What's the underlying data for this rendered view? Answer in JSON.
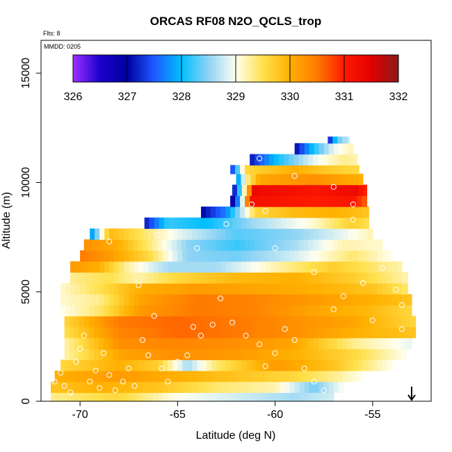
{
  "chart_data": {
    "type": "heatmap",
    "title": "ORCAS RF08 N2O_QCLS_trop",
    "flights_note": "Flts: 8",
    "date_note": "MMDD: 0205",
    "xlabel": "Latitude (deg N)",
    "ylabel": "Altitude (m)",
    "xlim": [
      -72,
      -52
    ],
    "ylim": [
      0,
      16500
    ],
    "x_ticks": [
      -70,
      -65,
      -60,
      -55
    ],
    "y_ticks": [
      0,
      5000,
      10000,
      15000
    ],
    "colorbar": {
      "min": 326,
      "max": 332,
      "ticks": [
        326,
        327,
        328,
        329,
        330,
        331,
        332
      ],
      "stops": [
        {
          "v": 326.0,
          "color": "#9b30ff"
        },
        {
          "v": 326.5,
          "color": "#1a00cc"
        },
        {
          "v": 327.0,
          "color": "#0000a0"
        },
        {
          "v": 327.5,
          "color": "#1e5aff"
        },
        {
          "v": 328.0,
          "color": "#00bfff"
        },
        {
          "v": 328.5,
          "color": "#8fd3f5"
        },
        {
          "v": 329.0,
          "color": "#fffff0"
        },
        {
          "v": 329.5,
          "color": "#ffe14d"
        },
        {
          "v": 330.0,
          "color": "#ffb000"
        },
        {
          "v": 330.5,
          "color": "#ff7a00"
        },
        {
          "v": 331.0,
          "color": "#ff1a00"
        },
        {
          "v": 331.5,
          "color": "#e00000"
        },
        {
          "v": 332.0,
          "color": "#8b1a1a"
        }
      ]
    },
    "arrow_marker": {
      "latitude": -53,
      "direction": "down"
    },
    "bands": [
      {
        "alt": [
          0,
          400
        ],
        "lat": [
          -71.5,
          -57.0
        ],
        "samples": [
          [
            -71.5,
            329.3
          ],
          [
            -68,
            329.6
          ],
          [
            -65,
            329.0
          ],
          [
            -62,
            328.8
          ],
          [
            -59,
            328.6
          ],
          [
            -57,
            328.8
          ]
        ]
      },
      {
        "alt": [
          400,
          900
        ],
        "lat": [
          -71.5,
          -56.5
        ],
        "samples": [
          [
            -71.5,
            329.8
          ],
          [
            -69,
            330.0
          ],
          [
            -66,
            329.8
          ],
          [
            -63,
            329.4
          ],
          [
            -60,
            329.2
          ],
          [
            -58,
            328.4
          ],
          [
            -56.5,
            329.0
          ]
        ]
      },
      {
        "alt": [
          900,
          1400
        ],
        "lat": [
          -71.3,
          -55.5
        ],
        "samples": [
          [
            -71.3,
            330.0
          ],
          [
            -68,
            330.2
          ],
          [
            -65,
            330.0
          ],
          [
            -62,
            329.8
          ],
          [
            -59,
            329.6
          ],
          [
            -57,
            329.3
          ],
          [
            -55.5,
            329.0
          ]
        ]
      },
      {
        "alt": [
          1400,
          1900
        ],
        "lat": [
          -71.0,
          -54.0
        ],
        "samples": [
          [
            -71,
            329.6
          ],
          [
            -68,
            330.0
          ],
          [
            -66,
            329.7
          ],
          [
            -64.5,
            328.6
          ],
          [
            -63,
            329.4
          ],
          [
            -60,
            330.2
          ],
          [
            -57,
            329.8
          ],
          [
            -54,
            329.0
          ]
        ]
      },
      {
        "alt": [
          1900,
          2400
        ],
        "lat": [
          -70.8,
          -53.3
        ],
        "samples": [
          [
            -70.8,
            329.2
          ],
          [
            -68,
            330.1
          ],
          [
            -65,
            330.3
          ],
          [
            -62,
            330.2
          ],
          [
            -59,
            330.0
          ],
          [
            -56,
            329.6
          ],
          [
            -53.3,
            329.0
          ]
        ]
      },
      {
        "alt": [
          2400,
          2900
        ],
        "lat": [
          -70.8,
          -53.0
        ],
        "samples": [
          [
            -70.8,
            329.2
          ],
          [
            -68,
            330.3
          ],
          [
            -65,
            330.4
          ],
          [
            -62,
            330.3
          ],
          [
            -59,
            330.1
          ],
          [
            -56,
            329.3
          ],
          [
            -53,
            328.9
          ]
        ]
      },
      {
        "alt": [
          2900,
          3400
        ],
        "lat": [
          -70.8,
          -52.8
        ],
        "samples": [
          [
            -70.8,
            329.5
          ],
          [
            -68,
            330.4
          ],
          [
            -65,
            330.6
          ],
          [
            -62,
            330.5
          ],
          [
            -59,
            330.3
          ],
          [
            -56,
            330.0
          ],
          [
            -52.8,
            329.8
          ]
        ]
      },
      {
        "alt": [
          3400,
          3900
        ],
        "lat": [
          -70.8,
          -52.8
        ],
        "samples": [
          [
            -70.8,
            329.6
          ],
          [
            -68,
            330.5
          ],
          [
            -65,
            330.6
          ],
          [
            -62,
            330.5
          ],
          [
            -59,
            330.3
          ],
          [
            -56,
            330.1
          ],
          [
            -52.8,
            329.6
          ]
        ]
      },
      {
        "alt": [
          3900,
          4400
        ],
        "lat": [
          -71.0,
          -53.0
        ],
        "samples": [
          [
            -71,
            329.0
          ],
          [
            -69,
            329.4
          ],
          [
            -67,
            330.2
          ],
          [
            -64,
            330.5
          ],
          [
            -61,
            330.4
          ],
          [
            -58,
            330.1
          ],
          [
            -55,
            329.9
          ],
          [
            -53,
            329.6
          ]
        ]
      },
      {
        "alt": [
          4400,
          4900
        ],
        "lat": [
          -71.0,
          -53.0
        ],
        "samples": [
          [
            -71,
            329.1
          ],
          [
            -69,
            329.3
          ],
          [
            -67,
            330.1
          ],
          [
            -64,
            330.5
          ],
          [
            -61,
            330.4
          ],
          [
            -58,
            330.2
          ],
          [
            -55,
            330.0
          ],
          [
            -53,
            329.8
          ]
        ]
      },
      {
        "alt": [
          4900,
          5400
        ],
        "lat": [
          -71.0,
          -53.2
        ],
        "samples": [
          [
            -71,
            329.1
          ],
          [
            -69,
            329.5
          ],
          [
            -67,
            330.0
          ],
          [
            -64,
            330.2
          ],
          [
            -61,
            330.1
          ],
          [
            -58,
            330.0
          ],
          [
            -55,
            329.8
          ],
          [
            -53.2,
            329.4
          ]
        ]
      },
      {
        "alt": [
          5400,
          5900
        ],
        "lat": [
          -70.5,
          -53.2
        ],
        "samples": [
          [
            -70.5,
            329.3
          ],
          [
            -68.5,
            329.5
          ],
          [
            -67,
            329.2
          ],
          [
            -65,
            329.6
          ],
          [
            -62,
            329.9
          ],
          [
            -59,
            330.0
          ],
          [
            -56,
            329.7
          ],
          [
            -53.2,
            329.2
          ]
        ]
      },
      {
        "alt": [
          5900,
          6400
        ],
        "lat": [
          -70.5,
          -53.5
        ],
        "samples": [
          [
            -70.5,
            330.2
          ],
          [
            -69,
            330.0
          ],
          [
            -67.5,
            329.2
          ],
          [
            -65.5,
            328.6
          ],
          [
            -63,
            328.6
          ],
          [
            -60,
            329.2
          ],
          [
            -57,
            329.7
          ],
          [
            -53.5,
            329.2
          ]
        ]
      },
      {
        "alt": [
          6400,
          6900
        ],
        "lat": [
          -70.0,
          -54.0
        ],
        "samples": [
          [
            -70,
            330.5
          ],
          [
            -68.5,
            330.2
          ],
          [
            -66.5,
            329.6
          ],
          [
            -64.5,
            328.5
          ],
          [
            -62,
            328.4
          ],
          [
            -59,
            328.8
          ],
          [
            -56,
            329.4
          ],
          [
            -54,
            329.0
          ]
        ]
      },
      {
        "alt": [
          6900,
          7400
        ],
        "lat": [
          -69.8,
          -54.5
        ],
        "samples": [
          [
            -69.8,
            330.3
          ],
          [
            -68,
            330.0
          ],
          [
            -66.5,
            329.4
          ],
          [
            -64.5,
            328.5
          ],
          [
            -62,
            328.2
          ],
          [
            -59,
            328.6
          ],
          [
            -56.5,
            329.2
          ],
          [
            -54.5,
            329.1
          ]
        ]
      },
      {
        "alt": [
          7400,
          7900
        ],
        "lat": [
          -69.5,
          -55.0
        ],
        "samples": [
          [
            -69.5,
            327.6
          ],
          [
            -68.5,
            329.9
          ],
          [
            -67,
            329.5
          ],
          [
            -65,
            328.9
          ],
          [
            -62,
            328.3
          ],
          [
            -59,
            328.5
          ],
          [
            -56.5,
            328.9
          ],
          [
            -55,
            329.2
          ]
        ]
      },
      {
        "alt": [
          7900,
          8400
        ],
        "lat": [
          -66.7,
          -55.2
        ],
        "samples": [
          [
            -66.7,
            327.1
          ],
          [
            -65.5,
            328.2
          ],
          [
            -63.5,
            328.0
          ],
          [
            -61,
            328.6
          ],
          [
            -58,
            329.1
          ],
          [
            -56,
            329.7
          ],
          [
            -55.2,
            329.5
          ]
        ]
      },
      {
        "alt": [
          8400,
          8900
        ],
        "lat": [
          -63.8,
          -55.2
        ],
        "samples": [
          [
            -63.8,
            327.0
          ],
          [
            -62.5,
            327.7
          ],
          [
            -61,
            329.6
          ],
          [
            -59,
            329.9
          ],
          [
            -57,
            330.0
          ],
          [
            -55.2,
            329.8
          ]
        ]
      },
      {
        "alt": [
          8900,
          9400
        ],
        "lat": [
          -62.3,
          -55.3
        ],
        "samples": [
          [
            -62.3,
            326.4
          ],
          [
            -61.8,
            328.1
          ],
          [
            -61.3,
            331.2
          ],
          [
            -58,
            331.0
          ],
          [
            -56,
            331.1
          ],
          [
            -55.3,
            330.6
          ]
        ]
      },
      {
        "alt": [
          9400,
          9900
        ],
        "lat": [
          -62.2,
          -55.3
        ],
        "samples": [
          [
            -62.2,
            326.8
          ],
          [
            -61.7,
            328.6
          ],
          [
            -61.1,
            331.3
          ],
          [
            -58,
            331.1
          ],
          [
            -55.8,
            331.3
          ],
          [
            -55.3,
            330.9
          ]
        ]
      },
      {
        "alt": [
          9900,
          10400
        ],
        "lat": [
          -62.0,
          -55.5
        ],
        "samples": [
          [
            -62,
            327.5
          ],
          [
            -61.5,
            329.2
          ],
          [
            -60.8,
            330.1
          ],
          [
            -58,
            330.3
          ],
          [
            -55.5,
            330.0
          ]
        ]
      },
      {
        "alt": [
          10400,
          10800
        ],
        "lat": [
          -62.3,
          -55.7
        ],
        "samples": [
          [
            -62.3,
            327.1
          ],
          [
            -61.5,
            329.6
          ],
          [
            -59,
            330.0
          ],
          [
            -57,
            329.7
          ],
          [
            -55.7,
            329.6
          ]
        ]
      },
      {
        "alt": [
          10800,
          11300
        ],
        "lat": [
          -61.3,
          -55.8
        ],
        "samples": [
          [
            -61.3,
            327.1
          ],
          [
            -60,
            328.0
          ],
          [
            -58,
            328.9
          ],
          [
            -56.5,
            329.3
          ],
          [
            -55.8,
            329.2
          ]
        ]
      },
      {
        "alt": [
          11300,
          11800
        ],
        "lat": [
          -59.0,
          -56.0
        ],
        "samples": [
          [
            -59,
            327.0
          ],
          [
            -58,
            328.1
          ],
          [
            -57,
            328.9
          ],
          [
            -56,
            329.2
          ]
        ]
      },
      {
        "alt": [
          11800,
          12100
        ],
        "lat": [
          -57.3,
          -56.2
        ],
        "samples": [
          [
            -57.3,
            327.0
          ],
          [
            -56.8,
            328.3
          ],
          [
            -56.2,
            328.8
          ]
        ]
      }
    ],
    "sample_points": [
      [
        -71.3,
        900
      ],
      [
        -71.0,
        1300
      ],
      [
        -70.8,
        700
      ],
      [
        -70.5,
        400
      ],
      [
        -70.2,
        1800
      ],
      [
        -70.0,
        2400
      ],
      [
        -69.8,
        3000
      ],
      [
        -69.5,
        900
      ],
      [
        -69.2,
        1400
      ],
      [
        -69.0,
        600
      ],
      [
        -68.8,
        2200
      ],
      [
        -68.5,
        1200
      ],
      [
        -68.2,
        500
      ],
      [
        -67.8,
        900
      ],
      [
        -67.5,
        1500
      ],
      [
        -67.2,
        700
      ],
      [
        -66.8,
        2800
      ],
      [
        -66.5,
        2100
      ],
      [
        -66.2,
        3900
      ],
      [
        -65.8,
        1500
      ],
      [
        -65.5,
        900
      ],
      [
        -65.0,
        1800
      ],
      [
        -64.5,
        2100
      ],
      [
        -64.2,
        3400
      ],
      [
        -63.8,
        3000
      ],
      [
        -63.2,
        3500
      ],
      [
        -62.8,
        4700
      ],
      [
        -62.2,
        3600
      ],
      [
        -61.5,
        3000
      ],
      [
        -60.8,
        2600
      ],
      [
        -60.5,
        1600
      ],
      [
        -60.0,
        2200
      ],
      [
        -59.5,
        3300
      ],
      [
        -59.0,
        2800
      ],
      [
        -58.5,
        1500
      ],
      [
        -58.0,
        900
      ],
      [
        -57.5,
        500
      ],
      [
        -57.0,
        4200
      ],
      [
        -56.5,
        4800
      ],
      [
        -55.5,
        5400
      ],
      [
        -54.5,
        6100
      ],
      [
        -53.8,
        5100
      ],
      [
        -53.5,
        3300
      ],
      [
        -68.5,
        7300
      ],
      [
        -66.0,
        7600
      ],
      [
        -64.0,
        7000
      ],
      [
        -61.2,
        9000
      ],
      [
        -60.5,
        8700
      ],
      [
        -59.0,
        10300
      ],
      [
        -60.8,
        11100
      ],
      [
        -57.0,
        9800
      ],
      [
        -56.0,
        9000
      ],
      [
        -62.5,
        8100
      ],
      [
        -60.0,
        7000
      ],
      [
        -58.0,
        5900
      ],
      [
        -55.0,
        3700
      ],
      [
        -53.5,
        4400
      ],
      [
        -56.0,
        8300
      ],
      [
        -67.0,
        5300
      ]
    ]
  }
}
